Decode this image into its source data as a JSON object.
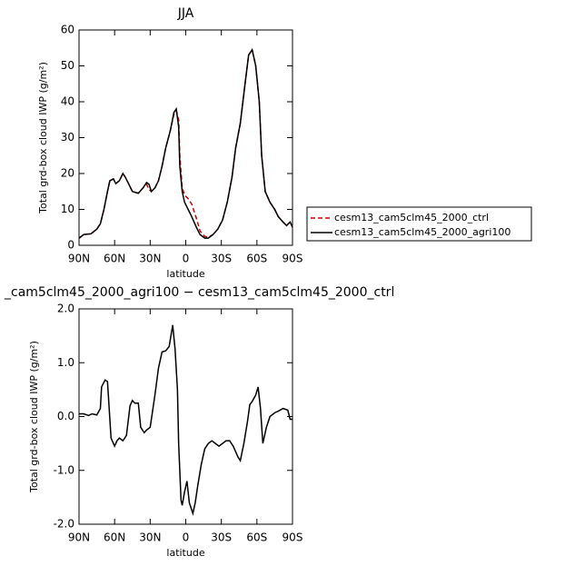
{
  "chart_data": [
    {
      "type": "line",
      "title": "JJA",
      "xlabel": "latitude",
      "ylabel": "Total grd-box cloud IWP (g/m²)",
      "x": [
        90,
        86,
        80,
        75,
        72,
        69,
        66,
        64,
        61,
        59,
        56,
        53,
        51,
        48,
        45,
        40,
        36,
        33,
        31,
        29,
        26,
        23,
        20,
        17,
        13,
        10,
        8,
        6,
        5,
        3,
        1,
        -2,
        -5,
        -9,
        -12,
        -16,
        -19,
        -23,
        -27,
        -31,
        -35,
        -39,
        -42,
        -46,
        -50,
        -53,
        -56,
        -59,
        -62,
        -64,
        -67,
        -71,
        -75,
        -78,
        -82,
        -85,
        -88,
        -90
      ],
      "xlim": [
        90,
        -90
      ],
      "xticks": [
        {
          "value": 90,
          "label": "90N"
        },
        {
          "value": 60,
          "label": "60N"
        },
        {
          "value": 30,
          "label": "30N"
        },
        0,
        {
          "value": -30,
          "label": "30S"
        },
        {
          "value": -60,
          "label": "60S"
        },
        {
          "value": -90,
          "label": "90S"
        }
      ],
      "ylim": [
        0,
        60
      ],
      "yticks": [
        0,
        10,
        20,
        30,
        40,
        50,
        60
      ],
      "legend": "right",
      "series": [
        {
          "name": "cesm13_cam5clm45_2000_ctrl",
          "color": "#cc0000",
          "linestyle": "dashed",
          "values": [
            2,
            3,
            3.2,
            4.5,
            6,
            10,
            15,
            18,
            18.5,
            17.2,
            18,
            20,
            19,
            17,
            15,
            14.5,
            16,
            17,
            15.5,
            15,
            16,
            18,
            22,
            27,
            32,
            36.5,
            37.5,
            35,
            25,
            16,
            14,
            13,
            11.5,
            7.5,
            4,
            2.5,
            2.2,
            3,
            4.5,
            7,
            12,
            19,
            27,
            34,
            45,
            53,
            54.5,
            50,
            40,
            25,
            15,
            12,
            10,
            8,
            6.5,
            5.5,
            6.5,
            5
          ]
        },
        {
          "name": "cesm13_cam5clm45_2000_agri100",
          "color": "#000000",
          "linestyle": "solid",
          "values": [
            2,
            3,
            3.2,
            4.5,
            6,
            10,
            15,
            18,
            18.5,
            17.2,
            18,
            20,
            19,
            17,
            15,
            14.5,
            16,
            17.5,
            17,
            15,
            16,
            18,
            22,
            27,
            32,
            37,
            38,
            33,
            22,
            15,
            12,
            10,
            8,
            5,
            3,
            2,
            2,
            3,
            4.5,
            7,
            12,
            19,
            27,
            34,
            45,
            53,
            54.5,
            50,
            40,
            25,
            15,
            12,
            10,
            8,
            6.5,
            5.5,
            6.5,
            5
          ]
        }
      ]
    },
    {
      "type": "line",
      "title": "_cam5clm45_2000_agri100 − cesm13_cam5clm45_2000_ctrl",
      "xlabel": "latitude",
      "ylabel": "Total grd-box cloud IWP (g/m²)",
      "x": [
        90,
        86,
        82,
        79,
        75,
        72,
        71,
        68,
        66,
        63,
        60,
        58,
        56,
        53,
        50,
        47,
        45,
        43,
        40,
        38,
        35,
        33,
        30,
        26,
        23,
        20,
        17,
        14,
        11,
        9,
        7,
        6,
        4,
        3,
        1,
        -1,
        -3,
        -6,
        -8,
        -10,
        -13,
        -16,
        -19,
        -22,
        -25,
        -28,
        -31,
        -34,
        -37,
        -40,
        -44,
        -46,
        -49,
        -52,
        -54,
        -56,
        -59,
        -61,
        -63,
        -65,
        -68,
        -71,
        -75,
        -78,
        -82,
        -86,
        -88,
        -90
      ],
      "xlim": [
        90,
        -90
      ],
      "xticks": [
        {
          "value": 90,
          "label": "90N"
        },
        {
          "value": 60,
          "label": "60N"
        },
        {
          "value": 30,
          "label": "30N"
        },
        0,
        {
          "value": -30,
          "label": "30S"
        },
        {
          "value": -60,
          "label": "60S"
        },
        {
          "value": -90,
          "label": "90S"
        }
      ],
      "ylim": [
        -2,
        2
      ],
      "yticks": [
        {
          "value": -2,
          "label": "-2.0"
        },
        {
          "value": -1,
          "label": "-1.0"
        },
        {
          "value": 0,
          "label": "0.0"
        },
        {
          "value": 1,
          "label": "1.0"
        },
        {
          "value": 2,
          "label": "2.0"
        }
      ],
      "series": [
        {
          "color": "#000000",
          "linestyle": "solid",
          "values": [
            0.05,
            0.05,
            0.02,
            0.05,
            0.03,
            0.15,
            0.55,
            0.68,
            0.65,
            -0.4,
            -0.55,
            -0.45,
            -0.4,
            -0.45,
            -0.35,
            0.2,
            0.3,
            0.25,
            0.25,
            -0.2,
            -0.3,
            -0.25,
            -0.2,
            0.4,
            0.9,
            1.2,
            1.22,
            1.3,
            1.7,
            1.25,
            0.5,
            -0.5,
            -1.55,
            -1.65,
            -1.4,
            -1.2,
            -1.6,
            -1.8,
            -1.6,
            -1.3,
            -0.9,
            -0.6,
            -0.5,
            -0.45,
            -0.5,
            -0.55,
            -0.5,
            -0.45,
            -0.45,
            -0.55,
            -0.75,
            -0.82,
            -0.5,
            -0.1,
            0.22,
            0.28,
            0.4,
            0.55,
            0.15,
            -0.5,
            -0.2,
            0,
            0.07,
            0.1,
            0.15,
            0.12,
            -0.05,
            -0.05
          ]
        }
      ]
    }
  ]
}
